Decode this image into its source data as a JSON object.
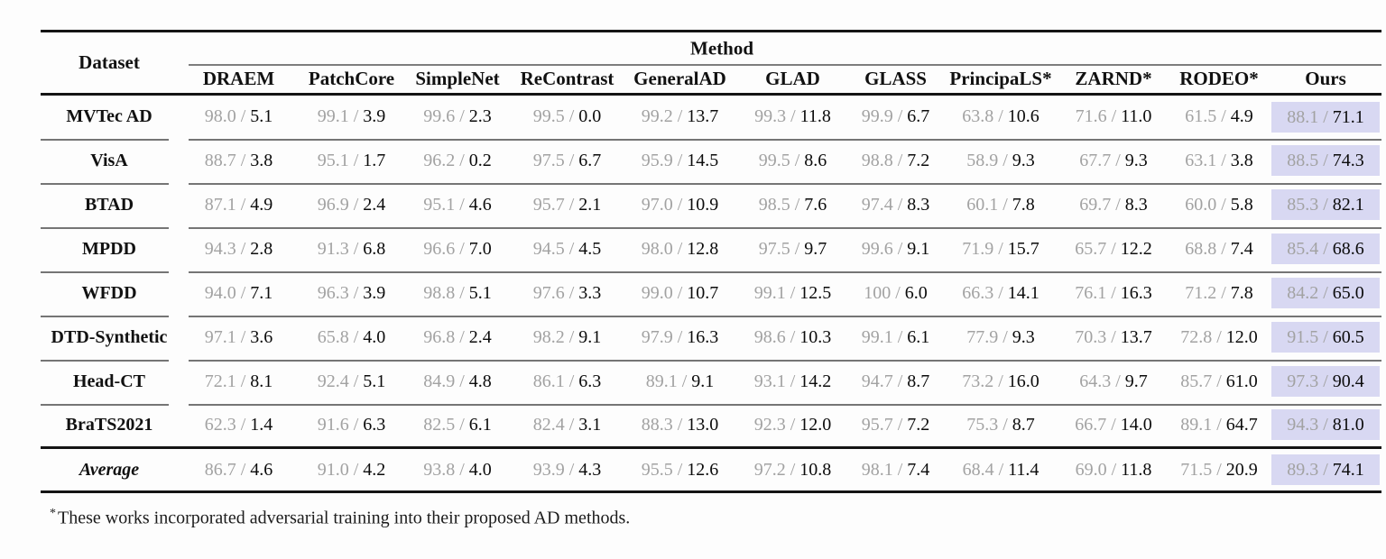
{
  "table": {
    "header": {
      "dataset_label": "Dataset",
      "method_label": "Method",
      "methods": [
        "DRAEM",
        "PatchCore",
        "SimpleNet",
        "ReContrast",
        "GeneralAD",
        "GLAD",
        "GLASS",
        "PrincipaLS*",
        "ZARND*",
        "RODEO*",
        "Ours"
      ]
    },
    "value_separator": " / ",
    "rows": [
      {
        "dataset": "MVTec AD",
        "cells": [
          [
            "98.0",
            "5.1"
          ],
          [
            "99.1",
            "3.9"
          ],
          [
            "99.6",
            "2.3"
          ],
          [
            "99.5",
            "0.0"
          ],
          [
            "99.2",
            "13.7"
          ],
          [
            "99.3",
            "11.8"
          ],
          [
            "99.9",
            "6.7"
          ],
          [
            "63.8",
            "10.6"
          ],
          [
            "71.6",
            "11.0"
          ],
          [
            "61.5",
            "4.9"
          ],
          [
            "88.1",
            "71.1"
          ]
        ]
      },
      {
        "dataset": "VisA",
        "cells": [
          [
            "88.7",
            "3.8"
          ],
          [
            "95.1",
            "1.7"
          ],
          [
            "96.2",
            "0.2"
          ],
          [
            "97.5",
            "6.7"
          ],
          [
            "95.9",
            "14.5"
          ],
          [
            "99.5",
            "8.6"
          ],
          [
            "98.8",
            "7.2"
          ],
          [
            "58.9",
            "9.3"
          ],
          [
            "67.7",
            "9.3"
          ],
          [
            "63.1",
            "3.8"
          ],
          [
            "88.5",
            "74.3"
          ]
        ]
      },
      {
        "dataset": "BTAD",
        "cells": [
          [
            "87.1",
            "4.9"
          ],
          [
            "96.9",
            "2.4"
          ],
          [
            "95.1",
            "4.6"
          ],
          [
            "95.7",
            "2.1"
          ],
          [
            "97.0",
            "10.9"
          ],
          [
            "98.5",
            "7.6"
          ],
          [
            "97.4",
            "8.3"
          ],
          [
            "60.1",
            "7.8"
          ],
          [
            "69.7",
            "8.3"
          ],
          [
            "60.0",
            "5.8"
          ],
          [
            "85.3",
            "82.1"
          ]
        ]
      },
      {
        "dataset": "MPDD",
        "cells": [
          [
            "94.3",
            "2.8"
          ],
          [
            "91.3",
            "6.8"
          ],
          [
            "96.6",
            "7.0"
          ],
          [
            "94.5",
            "4.5"
          ],
          [
            "98.0",
            "12.8"
          ],
          [
            "97.5",
            "9.7"
          ],
          [
            "99.6",
            "9.1"
          ],
          [
            "71.9",
            "15.7"
          ],
          [
            "65.7",
            "12.2"
          ],
          [
            "68.8",
            "7.4"
          ],
          [
            "85.4",
            "68.6"
          ]
        ]
      },
      {
        "dataset": "WFDD",
        "cells": [
          [
            "94.0",
            "7.1"
          ],
          [
            "96.3",
            "3.9"
          ],
          [
            "98.8",
            "5.1"
          ],
          [
            "97.6",
            "3.3"
          ],
          [
            "99.0",
            "10.7"
          ],
          [
            "99.1",
            "12.5"
          ],
          [
            "100",
            "6.0"
          ],
          [
            "66.3",
            "14.1"
          ],
          [
            "76.1",
            "16.3"
          ],
          [
            "71.2",
            "7.8"
          ],
          [
            "84.2",
            "65.0"
          ]
        ]
      },
      {
        "dataset": "DTD-Synthetic",
        "cells": [
          [
            "97.1",
            "3.6"
          ],
          [
            "65.8",
            "4.0"
          ],
          [
            "96.8",
            "2.4"
          ],
          [
            "98.2",
            "9.1"
          ],
          [
            "97.9",
            "16.3"
          ],
          [
            "98.6",
            "10.3"
          ],
          [
            "99.1",
            "6.1"
          ],
          [
            "77.9",
            "9.3"
          ],
          [
            "70.3",
            "13.7"
          ],
          [
            "72.8",
            "12.0"
          ],
          [
            "91.5",
            "60.5"
          ]
        ]
      },
      {
        "dataset": "Head-CT",
        "cells": [
          [
            "72.1",
            "8.1"
          ],
          [
            "92.4",
            "5.1"
          ],
          [
            "84.9",
            "4.8"
          ],
          [
            "86.1",
            "6.3"
          ],
          [
            "89.1",
            "9.1"
          ],
          [
            "93.1",
            "14.2"
          ],
          [
            "94.7",
            "8.7"
          ],
          [
            "73.2",
            "16.0"
          ],
          [
            "64.3",
            "9.7"
          ],
          [
            "85.7",
            "61.0"
          ],
          [
            "97.3",
            "90.4"
          ]
        ]
      },
      {
        "dataset": "BraTS2021",
        "cells": [
          [
            "62.3",
            "1.4"
          ],
          [
            "91.6",
            "6.3"
          ],
          [
            "82.5",
            "6.1"
          ],
          [
            "82.4",
            "3.1"
          ],
          [
            "88.3",
            "13.0"
          ],
          [
            "92.3",
            "12.0"
          ],
          [
            "95.7",
            "7.2"
          ],
          [
            "75.3",
            "8.7"
          ],
          [
            "66.7",
            "14.0"
          ],
          [
            "89.1",
            "64.7"
          ],
          [
            "94.3",
            "81.0"
          ]
        ]
      }
    ],
    "average_row": {
      "dataset": "Average",
      "cells": [
        [
          "86.7",
          "4.6"
        ],
        [
          "91.0",
          "4.2"
        ],
        [
          "93.8",
          "4.0"
        ],
        [
          "93.9",
          "4.3"
        ],
        [
          "95.5",
          "12.6"
        ],
        [
          "97.2",
          "10.8"
        ],
        [
          "98.1",
          "7.4"
        ],
        [
          "68.4",
          "11.4"
        ],
        [
          "69.0",
          "11.8"
        ],
        [
          "71.5",
          "20.9"
        ],
        [
          "89.3",
          "74.1"
        ]
      ]
    }
  },
  "footnote": {
    "marker": "*",
    "text": "These works incorporated adversarial training into their proposed AD methods."
  },
  "colors": {
    "highlight": "#d8d8f2",
    "gray_value": "#a2a2a2",
    "rule_thick": "#141414",
    "rule_thin": "#757575"
  }
}
